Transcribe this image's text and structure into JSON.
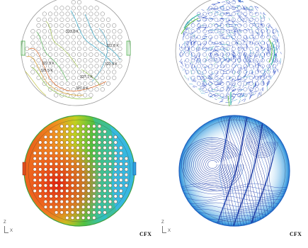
{
  "footer": {
    "left_label": "CFX",
    "right_label": "CFX"
  },
  "axis_triad": {
    "vertical": "Z",
    "horizontal": "X"
  },
  "contour_labels": [
    {
      "text": "323.8 K"
    },
    {
      "text": "322.6 K"
    },
    {
      "text": "323.9 K"
    },
    {
      "text": "322.9 K"
    },
    {
      "text": "325.5 K"
    },
    {
      "text": "327.7 K"
    },
    {
      "text": "327.6 K"
    }
  ],
  "colors": {
    "hot": "#e03018",
    "warm": "#f0a020",
    "mid": "#58c030",
    "cool": "#38b8e0",
    "streamline": "#1a3cc0"
  }
}
